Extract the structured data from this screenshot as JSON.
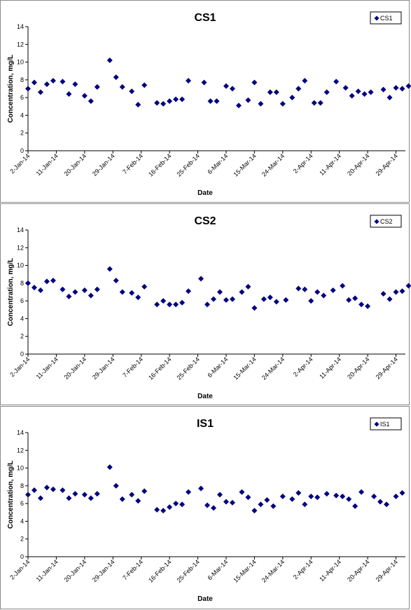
{
  "chart_data": [
    {
      "type": "scatter",
      "title": "CS1",
      "xlabel": "Date",
      "ylabel": "Concentration, mg/L",
      "ylim": [
        0,
        14
      ],
      "yticks": [
        0,
        2,
        4,
        6,
        8,
        10,
        12,
        14
      ],
      "xlim": [
        "2-Jan-14",
        "2-May-14"
      ],
      "xticks": [
        "2-Jan-14",
        "11-Jan-14",
        "20-Jan-14",
        "29-Jan-14",
        "7-Feb-14",
        "16-Feb-14",
        "25-Feb-14",
        "6-Mar-14",
        "15-Mar-14",
        "24-Mar-14",
        "2-Apr-14",
        "11-Apr-14",
        "20-Apr-14",
        "29-Apr-14"
      ],
      "legend": "top-right",
      "grid": false,
      "series": [
        {
          "name": "CS1",
          "color": "#000080",
          "x": [
            "2-Jan-14",
            "4-Jan-14",
            "6-Jan-14",
            "8-Jan-14",
            "10-Jan-14",
            "13-Jan-14",
            "15-Jan-14",
            "17-Jan-14",
            "20-Jan-14",
            "22-Jan-14",
            "24-Jan-14",
            "28-Jan-14",
            "30-Jan-14",
            "1-Feb-14",
            "4-Feb-14",
            "6-Feb-14",
            "8-Feb-14",
            "12-Feb-14",
            "14-Feb-14",
            "16-Feb-14",
            "18-Feb-14",
            "20-Feb-14",
            "22-Feb-14",
            "27-Feb-14",
            "1-Mar-14",
            "3-Mar-14",
            "6-Mar-14",
            "8-Mar-14",
            "10-Mar-14",
            "13-Mar-14",
            "15-Mar-14",
            "17-Mar-14",
            "20-Mar-14",
            "22-Mar-14",
            "24-Mar-14",
            "27-Mar-14",
            "29-Mar-14",
            "31-Mar-14",
            "3-Apr-14",
            "5-Apr-14",
            "7-Apr-14",
            "10-Apr-14",
            "13-Apr-14",
            "15-Apr-14",
            "17-Apr-14",
            "19-Apr-14",
            "21-Apr-14",
            "25-Apr-14",
            "27-Apr-14",
            "29-Apr-14",
            "1-May-14",
            "3-May-14"
          ],
          "y": [
            7.0,
            7.7,
            6.6,
            7.5,
            7.9,
            7.8,
            6.4,
            7.5,
            6.2,
            5.6,
            7.2,
            10.2,
            8.3,
            7.2,
            6.7,
            5.2,
            7.4,
            5.4,
            5.3,
            5.6,
            5.8,
            5.8,
            7.9,
            7.7,
            5.6,
            5.6,
            7.3,
            7.0,
            5.1,
            5.7,
            7.7,
            5.3,
            6.6,
            6.6,
            5.3,
            6.0,
            7.0,
            7.9,
            5.4,
            5.4,
            6.6,
            7.8,
            7.1,
            6.2,
            6.7,
            6.4,
            6.6,
            6.9,
            6.0,
            7.1,
            7.0,
            7.3
          ]
        }
      ]
    },
    {
      "type": "scatter",
      "title": "CS2",
      "xlabel": "Date",
      "ylabel": "Concentration, mg/L",
      "ylim": [
        0,
        14
      ],
      "yticks": [
        0,
        2,
        4,
        6,
        8,
        10,
        12,
        14
      ],
      "xlim": [
        "2-Jan-14",
        "2-May-14"
      ],
      "xticks": [
        "2-Jan-14",
        "11-Jan-14",
        "20-Jan-14",
        "29-Jan-14",
        "7-Feb-14",
        "16-Feb-14",
        "25-Feb-14",
        "6-Mar-14",
        "15-Mar-14",
        "24-Mar-14",
        "2-Apr-14",
        "11-Apr-14",
        "20-Apr-14",
        "29-Apr-14"
      ],
      "legend": "top-right",
      "grid": false,
      "series": [
        {
          "name": "CS2",
          "color": "#000080",
          "x": [
            "2-Jan-14",
            "4-Jan-14",
            "6-Jan-14",
            "8-Jan-14",
            "10-Jan-14",
            "13-Jan-14",
            "15-Jan-14",
            "17-Jan-14",
            "20-Jan-14",
            "22-Jan-14",
            "24-Jan-14",
            "28-Jan-14",
            "30-Jan-14",
            "1-Feb-14",
            "4-Feb-14",
            "6-Feb-14",
            "8-Feb-14",
            "12-Feb-14",
            "14-Feb-14",
            "16-Feb-14",
            "18-Feb-14",
            "20-Feb-14",
            "22-Feb-14",
            "26-Feb-14",
            "28-Feb-14",
            "2-Mar-14",
            "4-Mar-14",
            "6-Mar-14",
            "8-Mar-14",
            "11-Mar-14",
            "13-Mar-14",
            "15-Mar-14",
            "18-Mar-14",
            "20-Mar-14",
            "22-Mar-14",
            "25-Mar-14",
            "29-Mar-14",
            "31-Mar-14",
            "2-Apr-14",
            "4-Apr-14",
            "6-Apr-14",
            "9-Apr-14",
            "12-Apr-14",
            "14-Apr-14",
            "16-Apr-14",
            "18-Apr-14",
            "20-Apr-14",
            "25-Apr-14",
            "27-Apr-14",
            "29-Apr-14",
            "1-May-14",
            "3-May-14"
          ],
          "y": [
            8.0,
            7.5,
            7.2,
            8.2,
            8.3,
            7.3,
            6.5,
            7.0,
            7.2,
            6.6,
            7.3,
            9.6,
            8.3,
            7.0,
            6.9,
            6.4,
            7.6,
            5.6,
            6.0,
            5.6,
            5.6,
            5.8,
            7.1,
            8.5,
            5.6,
            6.2,
            7.0,
            6.1,
            6.2,
            7.0,
            7.6,
            5.2,
            6.2,
            6.4,
            5.9,
            6.1,
            7.4,
            7.3,
            6.0,
            7.0,
            6.6,
            7.2,
            7.7,
            6.1,
            6.3,
            5.6,
            5.4,
            6.8,
            6.2,
            7.0,
            7.1,
            7.7
          ]
        }
      ]
    },
    {
      "type": "scatter",
      "title": "IS1",
      "xlabel": "Date",
      "ylabel": "Concentration, mg/L",
      "ylim": [
        0,
        14
      ],
      "yticks": [
        0,
        2,
        4,
        6,
        8,
        10,
        12,
        14
      ],
      "xlim": [
        "2-Jan-14",
        "2-May-14"
      ],
      "xticks": [
        "2-Jan-14",
        "11-Jan-14",
        "20-Jan-14",
        "29-Jan-14",
        "7-Feb-14",
        "16-Feb-14",
        "25-Feb-14",
        "6-Mar-14",
        "15-Mar-14",
        "24-Mar-14",
        "2-Apr-14",
        "11-Apr-14",
        "20-Apr-14",
        "29-Apr-14"
      ],
      "legend": "top-right",
      "grid": false,
      "series": [
        {
          "name": "IS1",
          "color": "#000080",
          "x": [
            "2-Jan-14",
            "4-Jan-14",
            "6-Jan-14",
            "8-Jan-14",
            "10-Jan-14",
            "13-Jan-14",
            "15-Jan-14",
            "17-Jan-14",
            "20-Jan-14",
            "22-Jan-14",
            "24-Jan-14",
            "28-Jan-14",
            "30-Jan-14",
            "1-Feb-14",
            "4-Feb-14",
            "6-Feb-14",
            "8-Feb-14",
            "12-Feb-14",
            "14-Feb-14",
            "16-Feb-14",
            "18-Feb-14",
            "20-Feb-14",
            "22-Feb-14",
            "26-Feb-14",
            "28-Feb-14",
            "2-Mar-14",
            "4-Mar-14",
            "6-Mar-14",
            "8-Mar-14",
            "11-Mar-14",
            "13-Mar-14",
            "15-Mar-14",
            "17-Mar-14",
            "19-Mar-14",
            "21-Mar-14",
            "24-Mar-14",
            "27-Mar-14",
            "29-Mar-14",
            "31-Mar-14",
            "2-Apr-14",
            "4-Apr-14",
            "7-Apr-14",
            "10-Apr-14",
            "12-Apr-14",
            "14-Apr-14",
            "16-Apr-14",
            "18-Apr-14",
            "22-Apr-14",
            "24-Apr-14",
            "26-Apr-14",
            "29-Apr-14",
            "1-May-14"
          ],
          "y": [
            7.0,
            7.5,
            6.6,
            7.8,
            7.6,
            7.5,
            6.6,
            7.1,
            7.0,
            6.6,
            7.1,
            10.1,
            8.0,
            6.5,
            7.0,
            6.3,
            7.4,
            5.3,
            5.2,
            5.6,
            6.0,
            5.9,
            7.3,
            7.7,
            5.8,
            5.5,
            7.0,
            6.2,
            6.1,
            7.3,
            6.7,
            5.2,
            5.9,
            6.4,
            5.7,
            6.8,
            6.5,
            7.2,
            5.9,
            6.8,
            6.7,
            7.1,
            6.9,
            6.8,
            6.5,
            5.7,
            7.3,
            6.8,
            6.2,
            5.9,
            6.8,
            7.2
          ]
        }
      ]
    }
  ]
}
